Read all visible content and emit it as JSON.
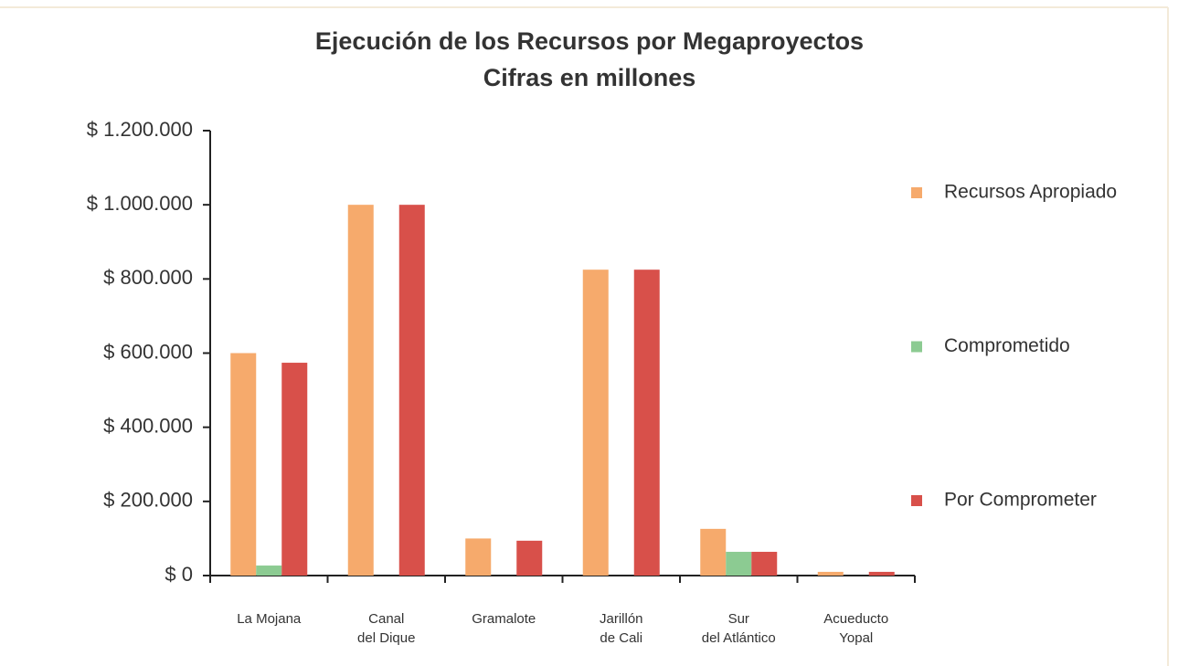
{
  "chart_data": {
    "type": "bar",
    "title": "Ejecución de los Recursos por Megaproyectos",
    "subtitle": "Cifras en millones",
    "categories": [
      "La Mojana",
      "Canal\ndel Dique",
      "Gramalote",
      "Jarillón\nde Cali",
      "Sur\ndel Atlántico",
      "Acueducto\nYopal"
    ],
    "series": [
      {
        "name": "Recursos Apropiado",
        "color": "#f6aa6c",
        "values": [
          600000,
          1000000,
          100000,
          825000,
          126000,
          10000
        ]
      },
      {
        "name": "Comprometido",
        "color": "#8ccb92",
        "values": [
          27000,
          0,
          0,
          0,
          64000,
          0
        ]
      },
      {
        "name": "Por Comprometer",
        "color": "#d8504a",
        "values": [
          574000,
          1000000,
          94000,
          825000,
          64000,
          10000
        ]
      }
    ],
    "ylim": [
      0,
      1200000
    ],
    "yticks": [
      {
        "value": 0,
        "label": "$ 0"
      },
      {
        "value": 200000,
        "label": "$ 200.000"
      },
      {
        "value": 400000,
        "label": "$ 400.000"
      },
      {
        "value": 600000,
        "label": "$ 600.000"
      },
      {
        "value": 800000,
        "label": "$ 800.000"
      },
      {
        "value": 1000000,
        "label": "$ 1.000.000"
      },
      {
        "value": 1200000,
        "label": "$ 1.200.000"
      }
    ],
    "legend": "right"
  }
}
